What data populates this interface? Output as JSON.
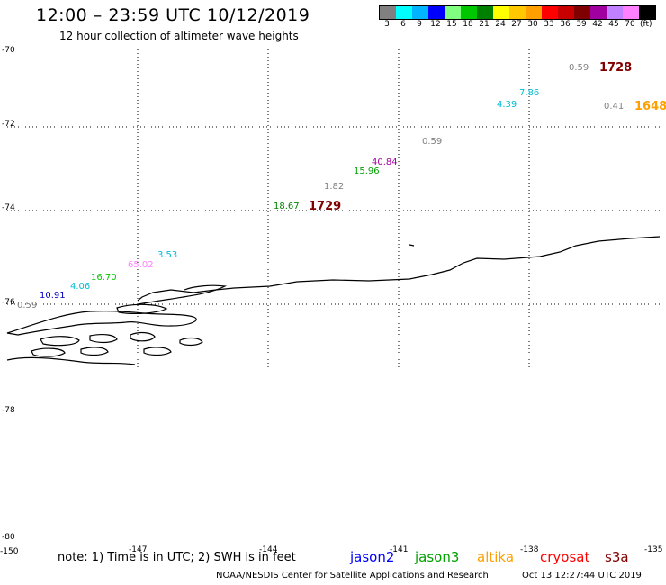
{
  "header": {
    "title": "12:00 – 23:59 UTC 10/12/2019",
    "subtitle": "12 hour collection of altimeter wave heights"
  },
  "colorbar": {
    "colors": [
      "#808080",
      "#00ffff",
      "#00b4ff",
      "#0000ff",
      "#80ff80",
      "#00c800",
      "#008000",
      "#ffff00",
      "#ffc800",
      "#ffa000",
      "#ff0000",
      "#c80000",
      "#800000",
      "#a000a0",
      "#c080ff",
      "#ff80ff",
      "#000000"
    ],
    "labels": [
      "3",
      "6",
      "9",
      "12",
      "15",
      "18",
      "21",
      "24",
      "27",
      "30",
      "33",
      "36",
      "39",
      "42",
      "45",
      "70"
    ],
    "unit": "(ft)"
  },
  "axes": {
    "lat_labels": [
      "-70",
      "-72",
      "-74",
      "-76",
      "-78",
      "-80"
    ],
    "lon_labels": [
      "-150",
      "-147",
      "-144",
      "-141",
      "-138",
      "-135"
    ]
  },
  "observations": [
    {
      "text": "0.59",
      "color": "#808080"
    },
    {
      "text": "1728",
      "color": "#800000",
      "time": true
    },
    {
      "text": "7.86",
      "color": "#00bcd4"
    },
    {
      "text": "4.39",
      "color": "#00bcd4"
    },
    {
      "text": "0.41",
      "color": "#808080"
    },
    {
      "text": "1648",
      "color": "#ffa000",
      "time": true
    },
    {
      "text": "0.59",
      "color": "#808080"
    },
    {
      "text": "40.84",
      "color": "#a000a0"
    },
    {
      "text": "15.96",
      "color": "#00a000"
    },
    {
      "text": "1.82",
      "color": "#808080"
    },
    {
      "text": "18.67",
      "color": "#008000"
    },
    {
      "text": "1729",
      "color": "#800000",
      "time": true
    },
    {
      "text": "3.53",
      "color": "#00bcd4"
    },
    {
      "text": "65.02",
      "color": "#ff80ff"
    },
    {
      "text": "16.70",
      "color": "#00c800"
    },
    {
      "text": "4.06",
      "color": "#00bcd4"
    },
    {
      "text": "10.91",
      "color": "#0000c0"
    },
    {
      "text": "0.59",
      "color": "#808080"
    }
  ],
  "footer": {
    "note": "note:  1) Time is in UTC;  2) SWH is in feet",
    "satellites": [
      {
        "name": "jason2",
        "color": "#0000ff"
      },
      {
        "name": "jason3",
        "color": "#00a000"
      },
      {
        "name": "altika",
        "color": "#ffa000"
      },
      {
        "name": "cryosat",
        "color": "#ff0000"
      },
      {
        "name": "s3a",
        "color": "#800000"
      }
    ],
    "credit": "NOAA/NESDIS Center for Satellite Applications and Research",
    "timestamp": "Oct 13 12:27:44 UTC 2019"
  }
}
